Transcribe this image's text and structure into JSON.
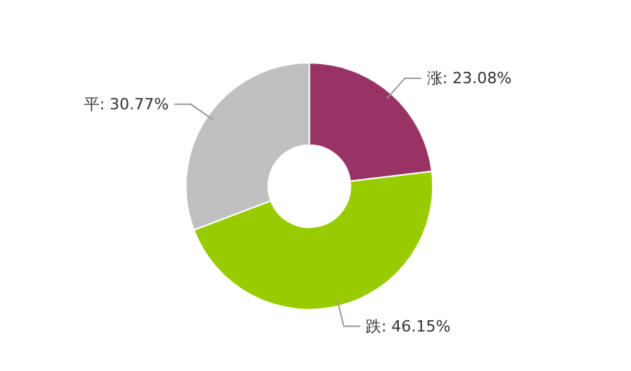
{
  "chart_data": {
    "type": "donut",
    "categories": [
      "涨",
      "跌",
      "平"
    ],
    "values": [
      23.08,
      46.15,
      30.77
    ],
    "colors": [
      "#993366",
      "#99cc00",
      "#c0c0c0"
    ],
    "value_labels": [
      "23.08%",
      "46.15%",
      "30.77%"
    ]
  }
}
